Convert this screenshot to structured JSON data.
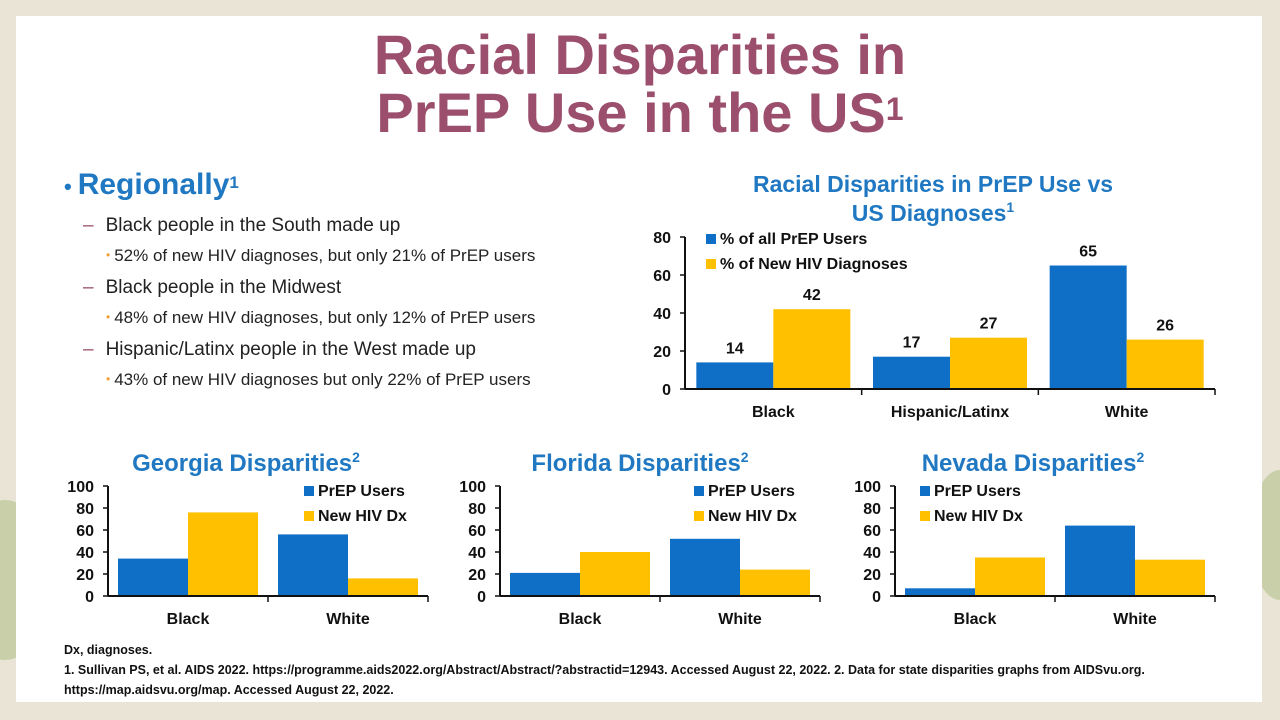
{
  "slide": {
    "title_line1": "Racial Disparities in",
    "title_line2": "PrEP Use in the US",
    "title_ref": "1"
  },
  "bullets": {
    "heading": "Regionally",
    "heading_ref": "1",
    "items": [
      {
        "text": "Black people in the South made up",
        "sub": "52% of new HIV diagnoses, but only 21% of PrEP users"
      },
      {
        "text": "Black people in the Midwest",
        "sub": "48% of new HIV diagnoses, but only 12% of PrEP users"
      },
      {
        "text": "Hispanic/Latinx people in the West made up",
        "sub": "43% of new HIV diagnoses but only 22% of PrEP users"
      }
    ]
  },
  "colors": {
    "blue": "#0f6fc6",
    "gold": "#ffc000",
    "title_purple": "#9b4f6c",
    "heading_blue": "#1f78c1"
  },
  "chart_data": [
    {
      "id": "main",
      "type": "bar",
      "title_line1": "Racial Disparities in PrEP Use vs",
      "title_line2": "US Diagnoses",
      "title_ref": "1",
      "categories": [
        "Black",
        "Hispanic/Latinx",
        "White"
      ],
      "series": [
        {
          "name": "% of all PrEP Users",
          "values": [
            14,
            17,
            65
          ]
        },
        {
          "name": "% of New HIV Diagnoses",
          "values": [
            42,
            27,
            26
          ]
        }
      ],
      "yticks": [
        "0",
        "20",
        "40",
        "60",
        "80"
      ],
      "ylim": [
        0,
        80
      ],
      "data_labels": true,
      "legend": "top-left"
    },
    {
      "id": "georgia",
      "type": "bar",
      "title": "Georgia Disparities",
      "title_ref": "2",
      "categories": [
        "Black",
        "White"
      ],
      "series": [
        {
          "name": "PrEP Users",
          "values": [
            34,
            56
          ]
        },
        {
          "name": "New HIV Dx",
          "values": [
            76,
            16
          ]
        }
      ],
      "yticks": [
        "0",
        "20",
        "40",
        "60",
        "80",
        "100"
      ],
      "ylim": [
        0,
        100
      ],
      "legend": "top-right"
    },
    {
      "id": "florida",
      "type": "bar",
      "title": "Florida Disparities",
      "title_ref": "2",
      "categories": [
        "Black",
        "White"
      ],
      "series": [
        {
          "name": "PrEP Users",
          "values": [
            21,
            52
          ]
        },
        {
          "name": "New HIV Dx",
          "values": [
            40,
            24
          ]
        }
      ],
      "yticks": [
        "0",
        "20",
        "40",
        "60",
        "80",
        "100"
      ],
      "ylim": [
        0,
        100
      ],
      "legend": "top-right"
    },
    {
      "id": "nevada",
      "type": "bar",
      "title": "Nevada Disparities",
      "title_ref": "2",
      "categories": [
        "Black",
        "White"
      ],
      "series": [
        {
          "name": "PrEP Users",
          "values": [
            7,
            64
          ]
        },
        {
          "name": "New HIV Dx",
          "values": [
            35,
            33
          ]
        }
      ],
      "yticks": [
        "0",
        "20",
        "40",
        "60",
        "80",
        "100"
      ],
      "ylim": [
        0,
        100
      ],
      "legend": "top-left"
    }
  ],
  "footnotes": {
    "line1": "Dx, diagnoses.",
    "line2": "1. Sullivan PS, et al. AIDS 2022. https://programme.aids2022.org/Abstract/Abstract/?abstractid=12943.  Accessed August 22, 2022. 2. Data for state disparities graphs from AIDSvu.org.",
    "line3": "https://map.aidsvu.org/map. Accessed  August 22, 2022."
  }
}
